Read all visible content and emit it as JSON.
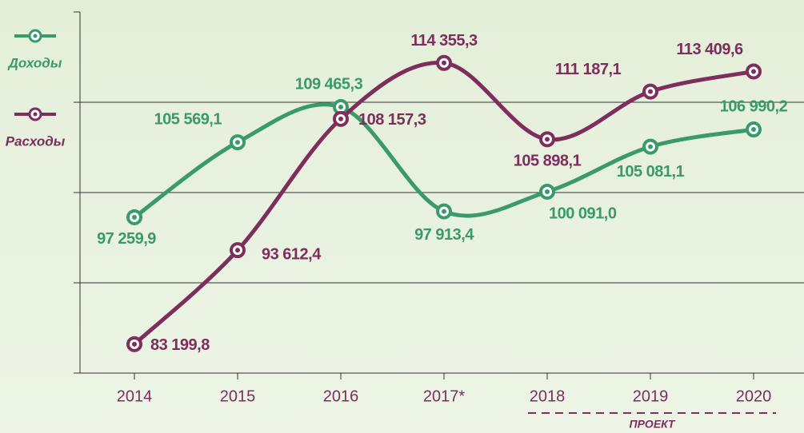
{
  "chart_data": {
    "type": "line",
    "categories": [
      "2014",
      "2015",
      "2016",
      "2017*",
      "2018",
      "2019",
      "2020"
    ],
    "series": [
      {
        "name": "Доходы",
        "color": "#3a9a6a",
        "values": [
          97259.9,
          105569.1,
          109465.3,
          97913.4,
          100091.0,
          105081.1,
          106990.2
        ],
        "value_labels": [
          "97 259,9",
          "105 569,1",
          "109 465,3",
          "97 913,4",
          "100 091,0",
          "105 081,1",
          "106 990,2"
        ]
      },
      {
        "name": "Расходы",
        "color": "#7d2e5c",
        "values": [
          83199.8,
          93612.4,
          108157.3,
          114355.3,
          105898.1,
          111187.1,
          113409.6
        ],
        "value_labels": [
          "83 199,8",
          "93 612,4",
          "108 157,3",
          "114 355,3",
          "105 898,1",
          "111 187,1",
          "113 409,6"
        ]
      }
    ],
    "ylim": [
      80000,
      120000
    ],
    "yticks": [
      80000,
      90000,
      100000,
      110000,
      120000
    ],
    "grid": true,
    "annotation": "ПРОЕКТ"
  }
}
